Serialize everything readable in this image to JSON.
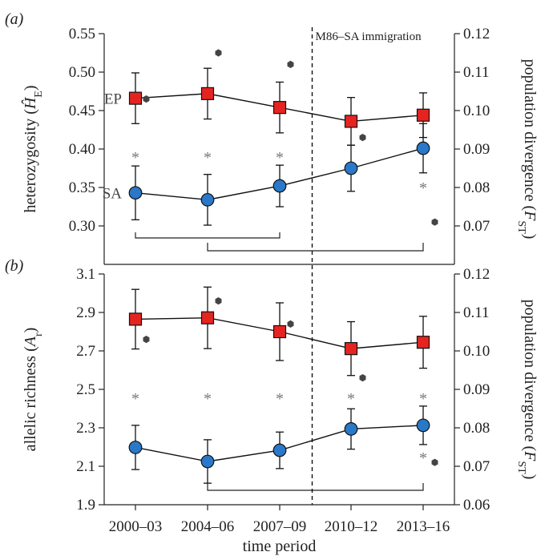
{
  "colors": {
    "EP": "#e52421",
    "SA": "#2a78c9",
    "fst": "#444444",
    "star": "#777777"
  },
  "chart_data": {
    "type": "line",
    "categories": [
      "2000–03",
      "2004–06",
      "2007–09",
      "2010–12",
      "2013–16"
    ],
    "xlabel": "time period",
    "vline": {
      "after_index": 2.5,
      "label": "M86–SA immigration"
    },
    "panels": [
      {
        "label": "(a)",
        "ylabel_left": "heterozygosity (Ĥ_E)",
        "ylabel_right": "population divergence (F_ST)",
        "ylim_left": [
          0.25,
          0.55
        ],
        "yticks_left": [
          "0.30",
          "0.35",
          "0.40",
          "0.45",
          "0.50",
          "0.55"
        ],
        "ylim_right": [
          0.06,
          0.12
        ],
        "yticks_right": [
          "0.07",
          "0.08",
          "0.09",
          "0.10",
          "0.11",
          "0.12"
        ],
        "series": [
          {
            "name": "EP",
            "marker": "square",
            "values": [
              0.466,
              0.472,
              0.454,
              0.436,
              0.444
            ],
            "err": [
              0.033,
              0.033,
              0.033,
              0.031,
              0.029
            ]
          },
          {
            "name": "SA",
            "marker": "circle",
            "values": [
              0.343,
              0.334,
              0.352,
              0.375,
              0.401
            ],
            "err": [
              0.035,
              0.033,
              0.027,
              0.03,
              0.032
            ]
          }
        ],
        "fst": {
          "x": [
            0.15,
            1.15,
            2.15,
            3.15,
            4.15
          ],
          "values": [
            0.103,
            0.115,
            0.112,
            0.093,
            0.071
          ]
        },
        "stars_top": [
          true,
          true,
          true,
          false,
          false
        ],
        "stars_bottom": [
          false,
          false,
          false,
          false,
          true
        ],
        "brackets": [
          {
            "from": 0,
            "to": 2
          },
          {
            "from": 1,
            "to": 4
          }
        ]
      },
      {
        "label": "(b)",
        "ylabel_left": "allelic richness (A_r)",
        "ylabel_right": "population divergence (F_ST)",
        "ylim_left": [
          1.9,
          3.1
        ],
        "yticks_left": [
          "1.9",
          "2.1",
          "2.3",
          "2.5",
          "2.7",
          "2.9",
          "3.1"
        ],
        "ylim_right": [
          0.06,
          0.12
        ],
        "yticks_right": [
          "0.06",
          "0.07",
          "0.08",
          "0.09",
          "0.10",
          "0.11",
          "0.12"
        ],
        "series": [
          {
            "name": "EP",
            "marker": "square",
            "values": [
              2.865,
              2.872,
              2.8,
              2.712,
              2.745
            ],
            "err": [
              0.155,
              0.16,
              0.15,
              0.14,
              0.135
            ]
          },
          {
            "name": "SA",
            "marker": "circle",
            "values": [
              2.198,
              2.125,
              2.183,
              2.294,
              2.313
            ],
            "err": [
              0.115,
              0.113,
              0.095,
              0.105,
              0.1
            ]
          }
        ],
        "fst": {
          "x": [
            0.15,
            1.15,
            2.15,
            3.15,
            4.15
          ],
          "values": [
            0.103,
            0.113,
            0.107,
            0.093,
            0.071
          ]
        },
        "stars_top": [
          true,
          true,
          true,
          true,
          true
        ],
        "stars_bottom": [
          false,
          false,
          false,
          false,
          true
        ],
        "brackets": [
          {
            "from": 1,
            "to": 4
          }
        ]
      }
    ]
  }
}
